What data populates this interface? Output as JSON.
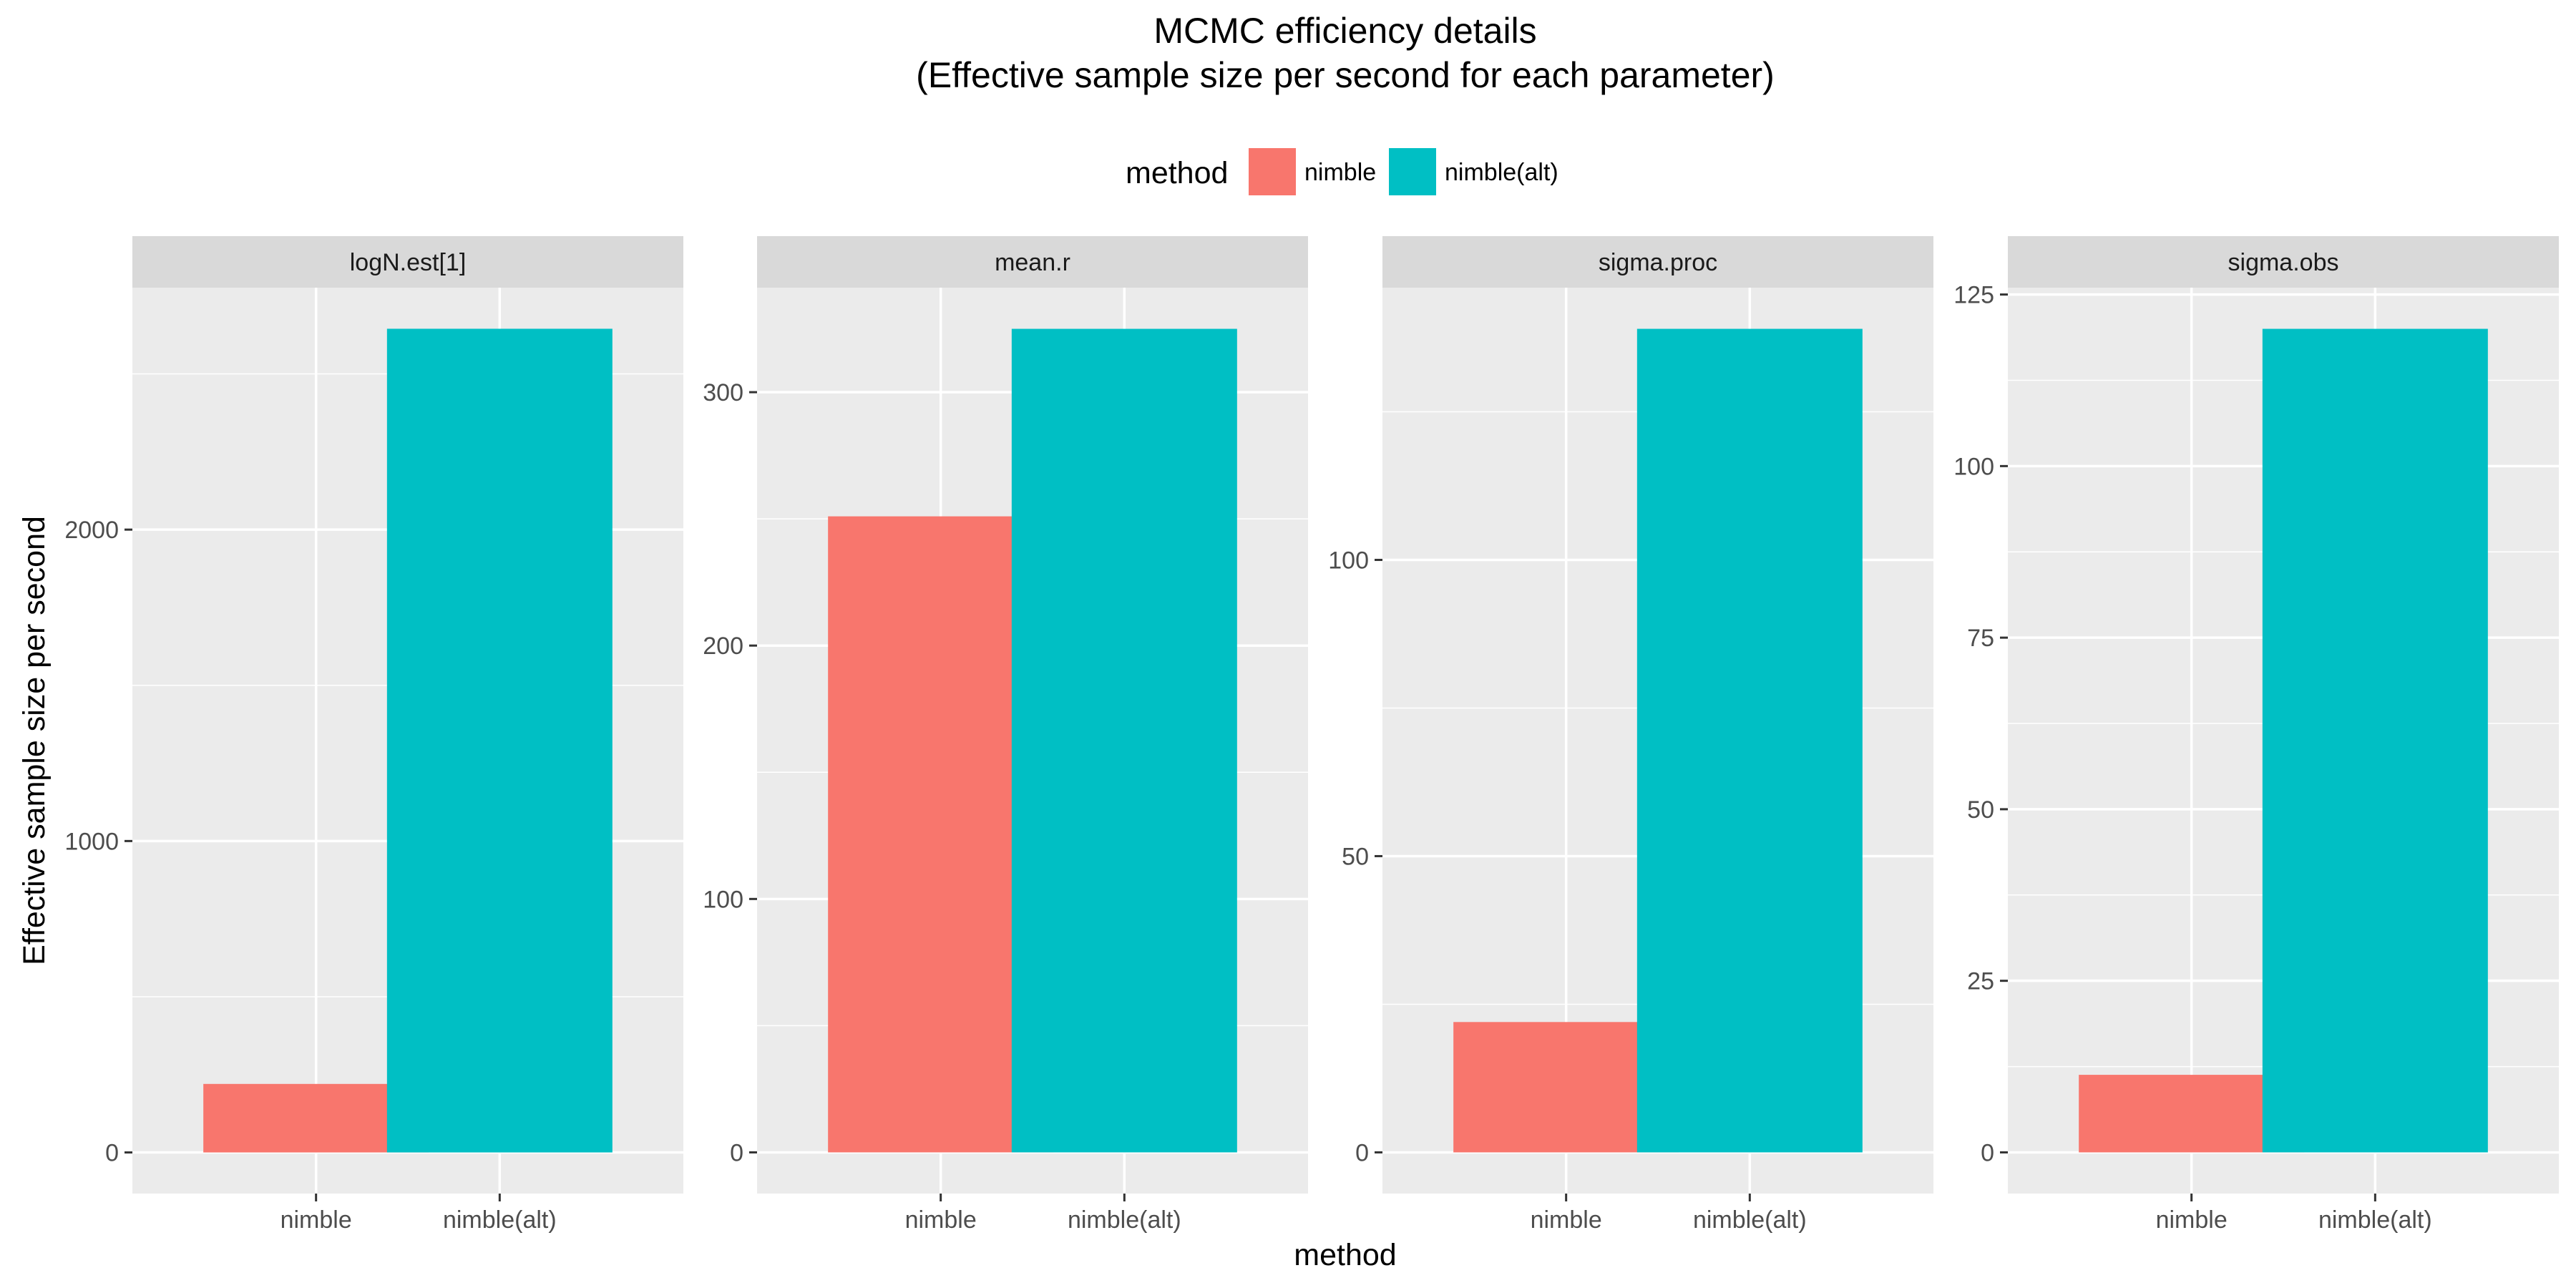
{
  "chart_data": {
    "type": "bar",
    "title": "MCMC efficiency details",
    "subtitle": "(Effective sample size per second for each parameter)",
    "xlabel": "method",
    "ylabel": "Effective sample size per second",
    "categories": [
      "nimble",
      "nimble(alt)"
    ],
    "legend": {
      "title": "method",
      "placement": "top",
      "entries": [
        {
          "label": "nimble",
          "color": "#F8766D"
        },
        {
          "label": "nimble(alt)",
          "color": "#00BFC4"
        }
      ]
    },
    "colors": {
      "panel_background": "#EBEBEB",
      "strip_background": "#D9D9D9",
      "grid": "#FFFFFF"
    },
    "facets": [
      {
        "name": "logN.est[1]",
        "values": [
          220,
          2645
        ],
        "ylim": [
          -132,
          2777
        ],
        "ticks": [
          0,
          1000,
          2000
        ],
        "minor": [
          500,
          1500,
          2500
        ]
      },
      {
        "name": "mean.r",
        "values": [
          251,
          325
        ],
        "ylim": [
          -16.25,
          341.25
        ],
        "ticks": [
          0,
          100,
          200,
          300
        ],
        "minor": [
          50,
          150,
          250
        ]
      },
      {
        "name": "sigma.proc",
        "values": [
          22,
          139
        ],
        "ylim": [
          -6.95,
          145.95
        ],
        "ticks": [
          0,
          50,
          100
        ],
        "minor": [
          25,
          75,
          125
        ]
      },
      {
        "name": "sigma.obs",
        "values": [
          11.3,
          120
        ],
        "ylim": [
          -6.0,
          126.0
        ],
        "ticks": [
          0,
          25,
          50,
          75,
          100,
          125
        ],
        "minor": [
          12.5,
          37.5,
          62.5,
          87.5,
          112.5
        ]
      }
    ]
  }
}
